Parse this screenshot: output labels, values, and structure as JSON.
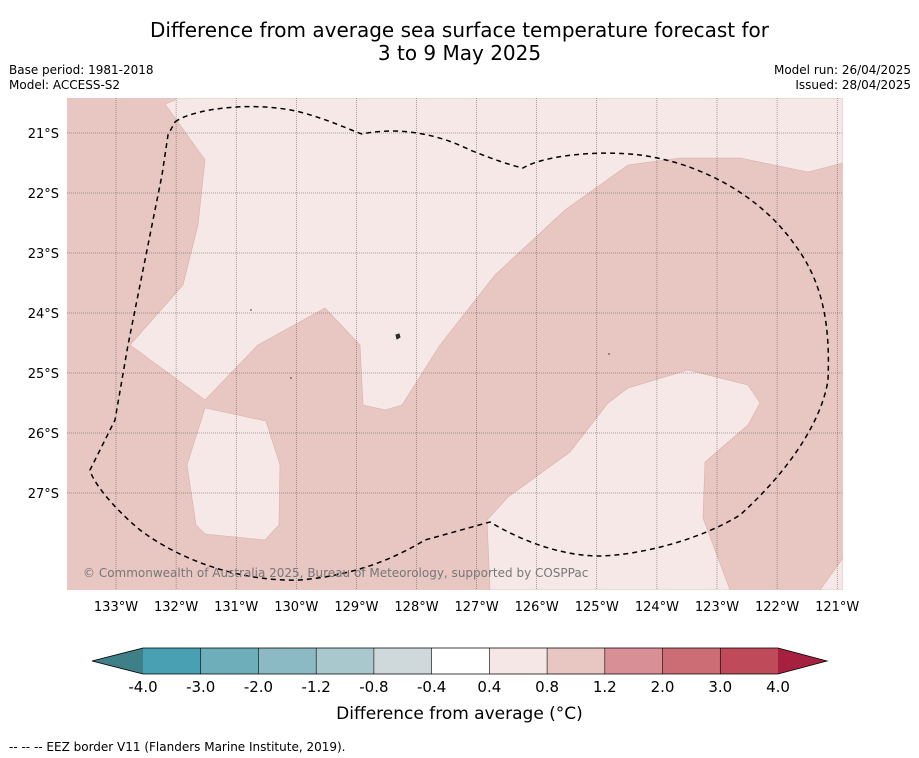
{
  "title_line1": "Difference from average sea surface temperature forecast for",
  "title_line2": "3 to 9 May 2025",
  "base_period": "Base period: 1981-2018",
  "model": "Model: ACCESS-S2",
  "model_run": "Model run: 26/04/2025",
  "issued": "Issued: 28/04/2025",
  "copyright": "© Commonwealth of Australia 2025, Bureau of Meteorology, supported by COSPPac",
  "lat_labels": [
    "21°S",
    "22°S",
    "23°S",
    "24°S",
    "25°S",
    "26°S",
    "27°S"
  ],
  "lon_labels": [
    "133°W",
    "132°W",
    "131°W",
    "130°W",
    "129°W",
    "128°W",
    "127°W",
    "126°W",
    "125°W",
    "124°W",
    "123°W",
    "122°W",
    "121°W"
  ],
  "colorbar": {
    "ticks": [
      "-4.0",
      "-3.0",
      "-2.0",
      "-1.2",
      "-0.8",
      "-0.4",
      "0.4",
      "0.8",
      "1.2",
      "2.0",
      "3.0",
      "4.0"
    ],
    "colors": [
      "#4aa0b3",
      "#6eaebb",
      "#8bbac4",
      "#a9c8cd",
      "#cfd9dc",
      "#ffffff",
      "#f5e7e5",
      "#e8c6c2",
      "#d98f96",
      "#cc6c75",
      "#be4a5a"
    ],
    "under_color": "#3f7f87",
    "over_color": "#a8203f",
    "label": "Difference from average (°C)"
  },
  "map_colors": {
    "light": "#f5e8e6",
    "mid": "#e8c6c2"
  },
  "legend_text": "--  --  -- EEZ border V11 (Flanders Marine Institute, 2019)."
}
